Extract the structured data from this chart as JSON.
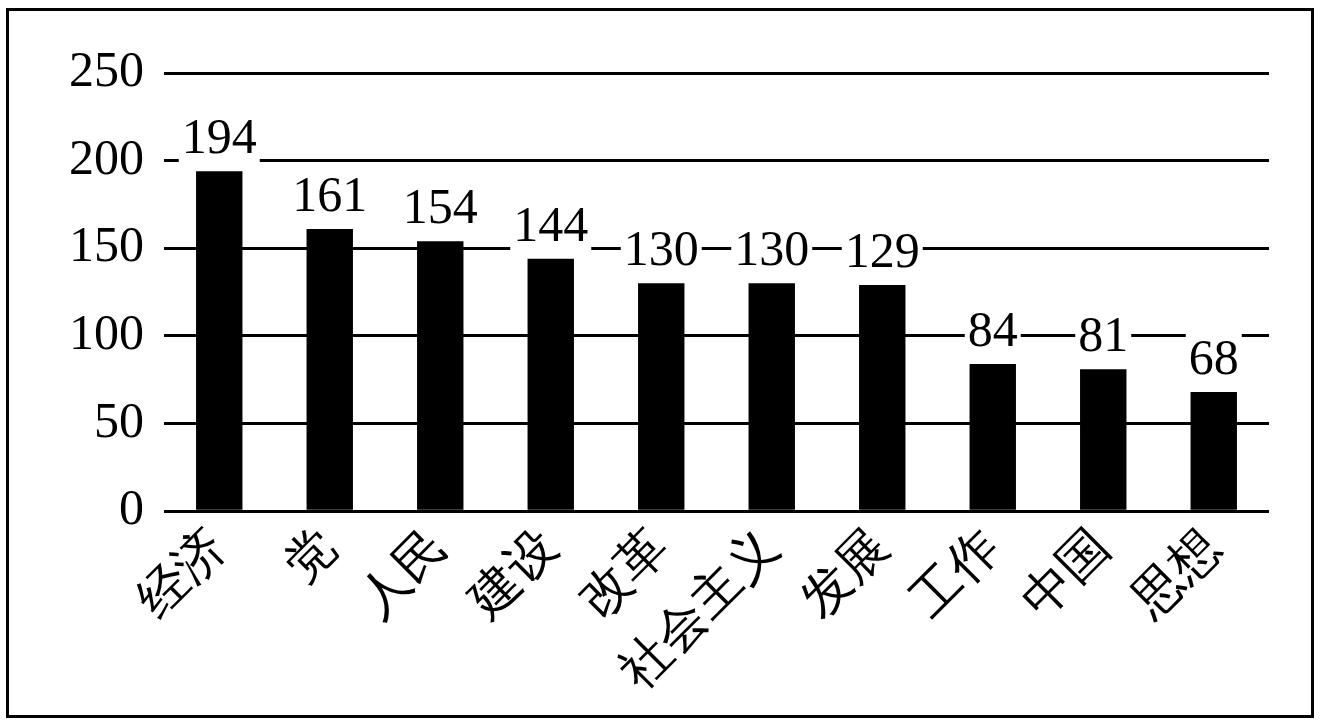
{
  "chart_data": {
    "type": "bar",
    "categories": [
      "经济",
      "党",
      "人民",
      "建设",
      "改革",
      "社会主义",
      "发展",
      "工作",
      "中国",
      "思想"
    ],
    "values": [
      194,
      161,
      154,
      144,
      130,
      130,
      129,
      84,
      81,
      68
    ],
    "color": "#000000",
    "ylim": [
      0,
      250
    ],
    "yticks": [
      0,
      50,
      100,
      150,
      200,
      250
    ],
    "grid": "y",
    "data_labels": true,
    "legend": false
  }
}
